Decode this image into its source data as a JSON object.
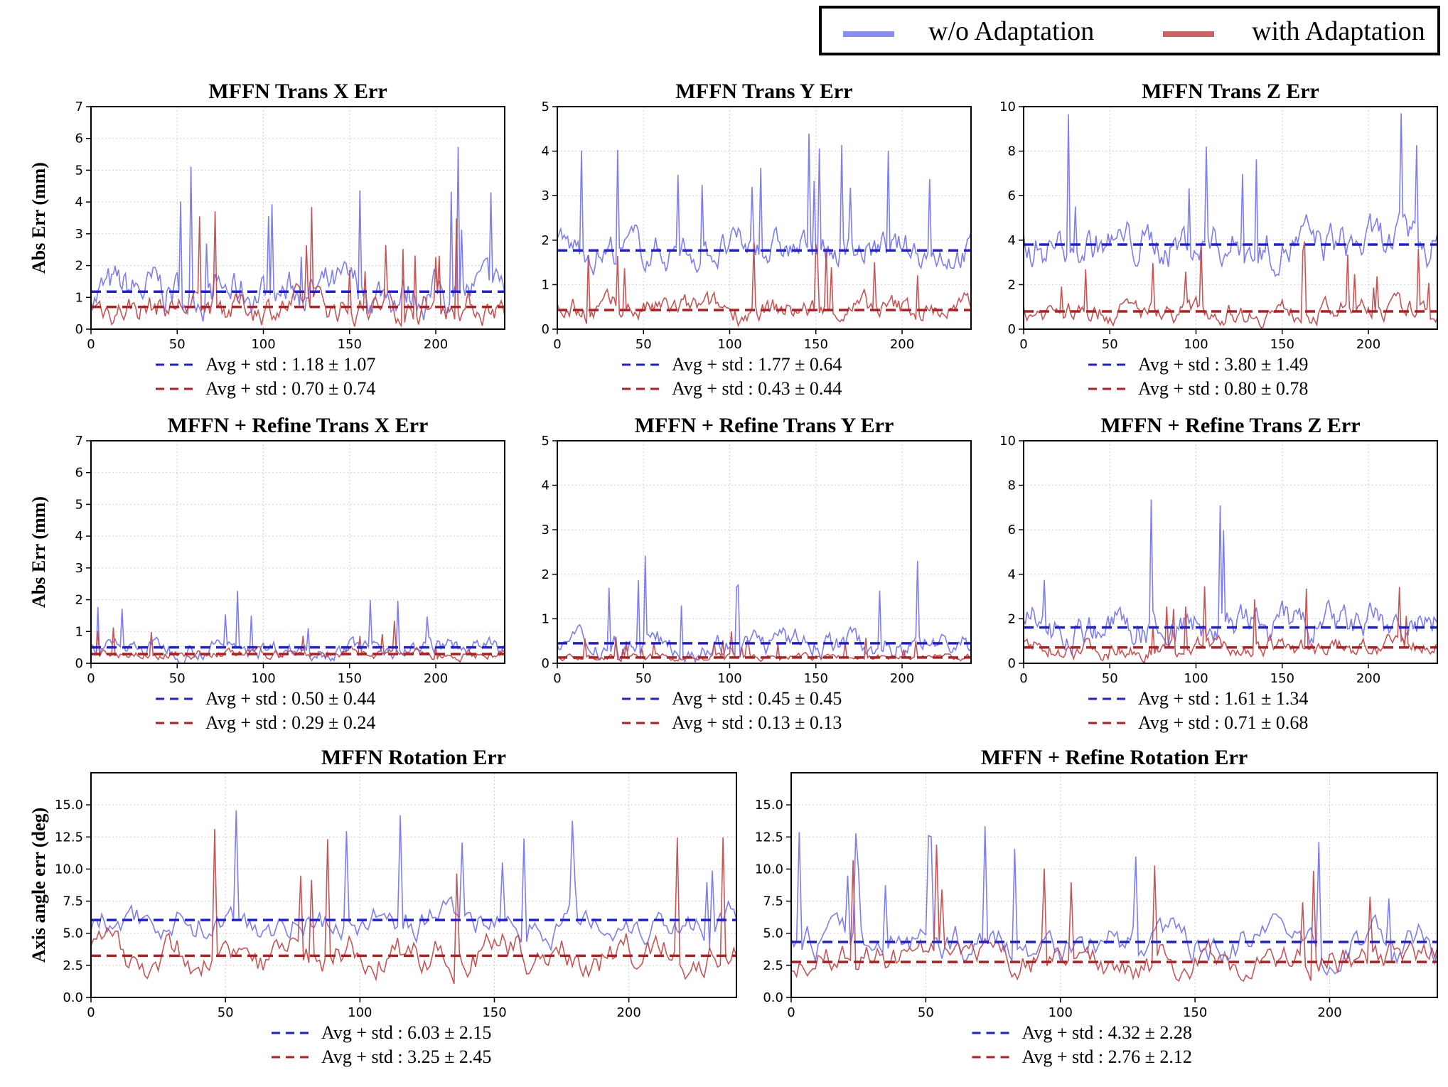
{
  "legend": {
    "items": [
      {
        "label": "w/o Adaptation",
        "color": "#8a8cf0"
      },
      {
        "label": "with Adaptation",
        "color": "#c96464"
      }
    ]
  },
  "colors": {
    "blue_line": "#6f70ee",
    "red_line": "#c04444",
    "blue_mean": "#1f1fd6",
    "red_mean": "#b02020"
  },
  "chart_data": [
    {
      "id": "mffn-x",
      "type": "line",
      "title": "MFFN Trans X Err",
      "ylabel": "Abs Err (mm)",
      "xlim": [
        0,
        240
      ],
      "ylim": [
        0,
        7
      ],
      "yticks": [
        "0",
        "1",
        "2",
        "3",
        "4",
        "5",
        "6",
        "7"
      ],
      "xticks": [
        "0",
        "50",
        "100",
        "150",
        "200"
      ],
      "series": [
        {
          "name": "w/o Adaptation",
          "mean": 1.18,
          "std": 1.07
        },
        {
          "name": "with Adaptation",
          "mean": 0.7,
          "std": 0.74
        }
      ],
      "stats": [
        "Avg + std : 1.18 ± 1.07",
        "Avg + std : 0.70 ± 0.74"
      ]
    },
    {
      "id": "mffn-y",
      "type": "line",
      "title": "MFFN Trans Y Err",
      "ylabel": "",
      "xlim": [
        0,
        240
      ],
      "ylim": [
        0,
        5
      ],
      "yticks": [
        "0",
        "1",
        "2",
        "3",
        "4",
        "5"
      ],
      "xticks": [
        "0",
        "50",
        "100",
        "150",
        "200"
      ],
      "series": [
        {
          "name": "w/o Adaptation",
          "mean": 1.77,
          "std": 0.64
        },
        {
          "name": "with Adaptation",
          "mean": 0.43,
          "std": 0.44
        }
      ],
      "stats": [
        "Avg + std : 1.77 ± 0.64",
        "Avg + std : 0.43 ± 0.44"
      ]
    },
    {
      "id": "mffn-z",
      "type": "line",
      "title": "MFFN Trans Z Err",
      "ylabel": "",
      "xlim": [
        0,
        240
      ],
      "ylim": [
        0,
        10
      ],
      "yticks": [
        "0",
        "2",
        "4",
        "6",
        "8",
        "10"
      ],
      "xticks": [
        "0",
        "50",
        "100",
        "150",
        "200"
      ],
      "series": [
        {
          "name": "w/o Adaptation",
          "mean": 3.8,
          "std": 1.49
        },
        {
          "name": "with Adaptation",
          "mean": 0.8,
          "std": 0.78
        }
      ],
      "stats": [
        "Avg + std : 3.80 ± 1.49",
        "Avg + std : 0.80 ± 0.78"
      ]
    },
    {
      "id": "ref-x",
      "type": "line",
      "title": "MFFN + Refine Trans X Err",
      "ylabel": "Abs Err (mm)",
      "xlim": [
        0,
        240
      ],
      "ylim": [
        0,
        7
      ],
      "yticks": [
        "0",
        "1",
        "2",
        "3",
        "4",
        "5",
        "6",
        "7"
      ],
      "xticks": [
        "0",
        "50",
        "100",
        "150",
        "200"
      ],
      "series": [
        {
          "name": "w/o Adaptation",
          "mean": 0.5,
          "std": 0.44
        },
        {
          "name": "with Adaptation",
          "mean": 0.29,
          "std": 0.24
        }
      ],
      "stats": [
        "Avg + std : 0.50 ± 0.44",
        "Avg + std : 0.29 ± 0.24"
      ]
    },
    {
      "id": "ref-y",
      "type": "line",
      "title": "MFFN + Refine Trans Y Err",
      "ylabel": "",
      "xlim": [
        0,
        240
      ],
      "ylim": [
        0,
        5
      ],
      "yticks": [
        "0",
        "1",
        "2",
        "3",
        "4",
        "5"
      ],
      "xticks": [
        "0",
        "50",
        "100",
        "150",
        "200"
      ],
      "series": [
        {
          "name": "w/o Adaptation",
          "mean": 0.45,
          "std": 0.45
        },
        {
          "name": "with Adaptation",
          "mean": 0.13,
          "std": 0.13
        }
      ],
      "stats": [
        "Avg + std : 0.45 ± 0.45",
        "Avg + std : 0.13 ± 0.13"
      ]
    },
    {
      "id": "ref-z",
      "type": "line",
      "title": "MFFN + Refine Trans Z Err",
      "ylabel": "",
      "xlim": [
        0,
        240
      ],
      "ylim": [
        0,
        10
      ],
      "yticks": [
        "0",
        "2",
        "4",
        "6",
        "8",
        "10"
      ],
      "xticks": [
        "0",
        "50",
        "100",
        "150",
        "200"
      ],
      "series": [
        {
          "name": "w/o Adaptation",
          "mean": 1.61,
          "std": 1.34
        },
        {
          "name": "with Adaptation",
          "mean": 0.71,
          "std": 0.68
        }
      ],
      "stats": [
        "Avg + std : 1.61 ± 1.34",
        "Avg + std : 0.71 ± 0.68"
      ]
    },
    {
      "id": "mffn-rot",
      "type": "line",
      "title": "MFFN Rotation Err",
      "ylabel": "Axis angle err (deg)",
      "xlim": [
        0,
        240
      ],
      "ylim": [
        0,
        17.5
      ],
      "yticks": [
        "0.0",
        "2.5",
        "5.0",
        "7.5",
        "10.0",
        "12.5",
        "15.0"
      ],
      "xticks": [
        "0",
        "50",
        "100",
        "150",
        "200"
      ],
      "series": [
        {
          "name": "w/o Adaptation",
          "mean": 6.03,
          "std": 2.15
        },
        {
          "name": "with Adaptation",
          "mean": 3.25,
          "std": 2.45
        }
      ],
      "stats": [
        "Avg + std : 6.03 ± 2.15",
        "Avg + std : 3.25 ± 2.45"
      ]
    },
    {
      "id": "ref-rot",
      "type": "line",
      "title": "MFFN + Refine Rotation Err",
      "ylabel": "",
      "xlim": [
        0,
        240
      ],
      "ylim": [
        0,
        17.5
      ],
      "yticks": [
        "0.0",
        "2.5",
        "5.0",
        "7.5",
        "10.0",
        "12.5",
        "15.0"
      ],
      "xticks": [
        "0",
        "50",
        "100",
        "150",
        "200"
      ],
      "series": [
        {
          "name": "w/o Adaptation",
          "mean": 4.32,
          "std": 2.28
        },
        {
          "name": "with Adaptation",
          "mean": 2.76,
          "std": 2.12
        }
      ],
      "stats": [
        "Avg + std : 4.32 ± 2.28",
        "Avg + std : 2.76 ± 2.12"
      ]
    }
  ]
}
